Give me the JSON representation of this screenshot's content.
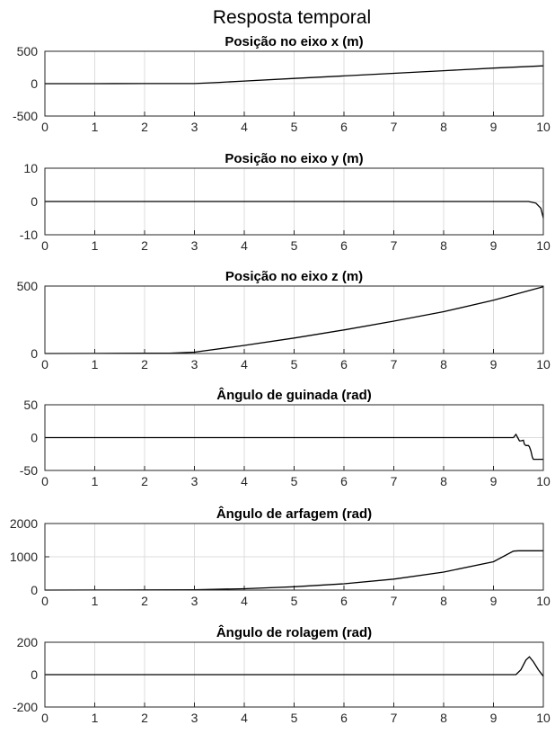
{
  "figure": {
    "title": "Resposta temporal"
  },
  "chart_data": [
    {
      "type": "line",
      "title": "Posição no eixo x (m)",
      "xlim": [
        0,
        10
      ],
      "ylim": [
        -500,
        500
      ],
      "grid": true,
      "xticks": [
        "0",
        "1",
        "2",
        "3",
        "4",
        "5",
        "6",
        "7",
        "8",
        "9",
        "10"
      ],
      "yticks": [
        "500",
        "0",
        "-500"
      ],
      "ytick_values": [
        500,
        0,
        -500
      ],
      "series": [
        {
          "x": [
            0,
            1,
            2,
            3,
            3.5,
            4,
            5,
            6,
            7,
            8,
            9,
            10
          ],
          "y": [
            0,
            0,
            1,
            2,
            20,
            40,
            80,
            120,
            160,
            200,
            240,
            275
          ]
        }
      ]
    },
    {
      "type": "line",
      "title": "Posição no eixo y (m)",
      "xlim": [
        0,
        10
      ],
      "ylim": [
        -10,
        10
      ],
      "grid": true,
      "xticks": [
        "0",
        "1",
        "2",
        "3",
        "4",
        "5",
        "6",
        "7",
        "8",
        "9",
        "10"
      ],
      "yticks": [
        "10",
        "0",
        "-10"
      ],
      "ytick_values": [
        10,
        0,
        -10
      ],
      "series": [
        {
          "x": [
            0,
            2,
            4,
            6,
            8,
            9,
            9.7,
            9.85,
            9.95,
            10
          ],
          "y": [
            0,
            0,
            0,
            0,
            0,
            0,
            0,
            -0.5,
            -2,
            -5
          ]
        }
      ]
    },
    {
      "type": "line",
      "title": "Posição no eixo z (m)",
      "xlim": [
        0,
        10
      ],
      "ylim": [
        0,
        500
      ],
      "grid": true,
      "xticks": [
        "0",
        "1",
        "2",
        "3",
        "4",
        "5",
        "6",
        "7",
        "8",
        "9",
        "10"
      ],
      "yticks": [
        "500",
        "0"
      ],
      "ytick_values": [
        500,
        0
      ],
      "series": [
        {
          "x": [
            0,
            1,
            2,
            2.5,
            3,
            4,
            5,
            6,
            7,
            8,
            9,
            10
          ],
          "y": [
            0,
            1,
            2,
            3,
            10,
            60,
            115,
            175,
            240,
            310,
            395,
            495
          ]
        }
      ]
    },
    {
      "type": "line",
      "title": "Ângulo de guinada (rad)",
      "xlim": [
        0,
        10
      ],
      "ylim": [
        -50,
        50
      ],
      "grid": true,
      "xticks": [
        "0",
        "1",
        "2",
        "3",
        "4",
        "5",
        "6",
        "7",
        "8",
        "9",
        "10"
      ],
      "yticks": [
        "50",
        "0",
        "-50"
      ],
      "ytick_values": [
        50,
        0,
        -50
      ],
      "series": [
        {
          "x": [
            0,
            3,
            6,
            9,
            9.4,
            9.45,
            9.5,
            9.52,
            9.55,
            9.6,
            9.62,
            9.65,
            9.7,
            9.72,
            9.75,
            9.78,
            9.8,
            9.85,
            9.9,
            10
          ],
          "y": [
            0,
            0,
            0,
            0,
            0,
            5,
            -2,
            -5,
            -5,
            -4,
            -10,
            -12,
            -12,
            -14,
            -20,
            -30,
            -33,
            -33,
            -33,
            -33
          ]
        }
      ]
    },
    {
      "type": "line",
      "title": "Ângulo de arfagem (rad)",
      "xlim": [
        0,
        10
      ],
      "ylim": [
        0,
        2000
      ],
      "grid": true,
      "xticks": [
        "0",
        "1",
        "2",
        "3",
        "4",
        "5",
        "6",
        "7",
        "8",
        "9",
        "10"
      ],
      "yticks": [
        "2000",
        "1000",
        "0"
      ],
      "ytick_values": [
        2000,
        1000,
        0
      ],
      "series": [
        {
          "x": [
            0,
            1,
            2,
            3,
            4,
            5,
            6,
            7,
            8,
            9,
            9.4,
            9.5,
            10
          ],
          "y": [
            0,
            2,
            5,
            10,
            40,
            100,
            190,
            330,
            540,
            850,
            1170,
            1180,
            1180
          ]
        }
      ]
    },
    {
      "type": "line",
      "title": "Ângulo de rolagem (rad)",
      "xlim": [
        0,
        10
      ],
      "ylim": [
        -200,
        200
      ],
      "grid": true,
      "xticks": [
        "0",
        "1",
        "2",
        "3",
        "4",
        "5",
        "6",
        "7",
        "8",
        "9",
        "10"
      ],
      "yticks": [
        "200",
        "0",
        "-200"
      ],
      "ytick_values": [
        200,
        0,
        -200
      ],
      "series": [
        {
          "x": [
            0,
            3,
            6,
            9,
            9.45,
            9.55,
            9.65,
            9.72,
            9.8,
            9.9,
            10
          ],
          "y": [
            0,
            0,
            0,
            0,
            0,
            30,
            90,
            110,
            80,
            30,
            -10
          ]
        }
      ]
    }
  ]
}
